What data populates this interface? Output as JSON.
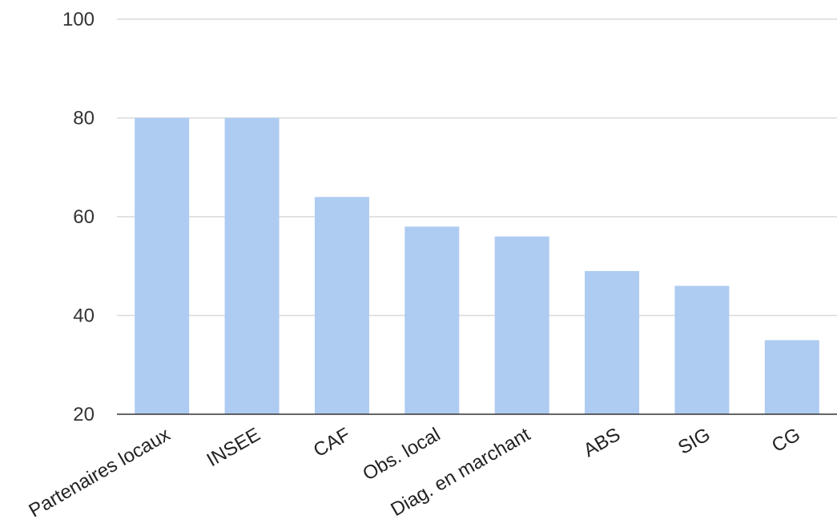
{
  "chart_data": {
    "type": "bar",
    "title": "",
    "xlabel": "",
    "ylabel": "",
    "categories": [
      "Partenaires locaux",
      "INSEE",
      "CAF",
      "Obs. local",
      "Diag. en marchant",
      "ABS",
      "SIG",
      "CG"
    ],
    "values": [
      80,
      80,
      64,
      58,
      56,
      49,
      46,
      35
    ],
    "ylim": [
      20,
      100
    ],
    "yticks": [
      20,
      40,
      60,
      80,
      100
    ],
    "ytick_labels": [
      "20",
      "40",
      "60",
      "80",
      "100"
    ],
    "grid": true,
    "legend": "none",
    "bar_color": "#aecbf2",
    "grid_color": "#d9d9d9",
    "axis_color": "#333333"
  }
}
